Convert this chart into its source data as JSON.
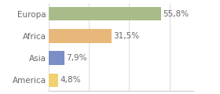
{
  "categories": [
    "Europa",
    "Africa",
    "Asia",
    "America"
  ],
  "values": [
    55.8,
    31.5,
    7.9,
    4.8
  ],
  "labels": [
    "55,8%",
    "31,5%",
    "7,9%",
    "4,8%"
  ],
  "bar_colors": [
    "#a8bc8a",
    "#e8b87a",
    "#7b8ec8",
    "#f0d070"
  ],
  "background_color": "#ffffff",
  "xlim": [
    0,
    72
  ],
  "bar_height": 0.62,
  "label_fontsize": 7.5,
  "tick_fontsize": 7.5
}
